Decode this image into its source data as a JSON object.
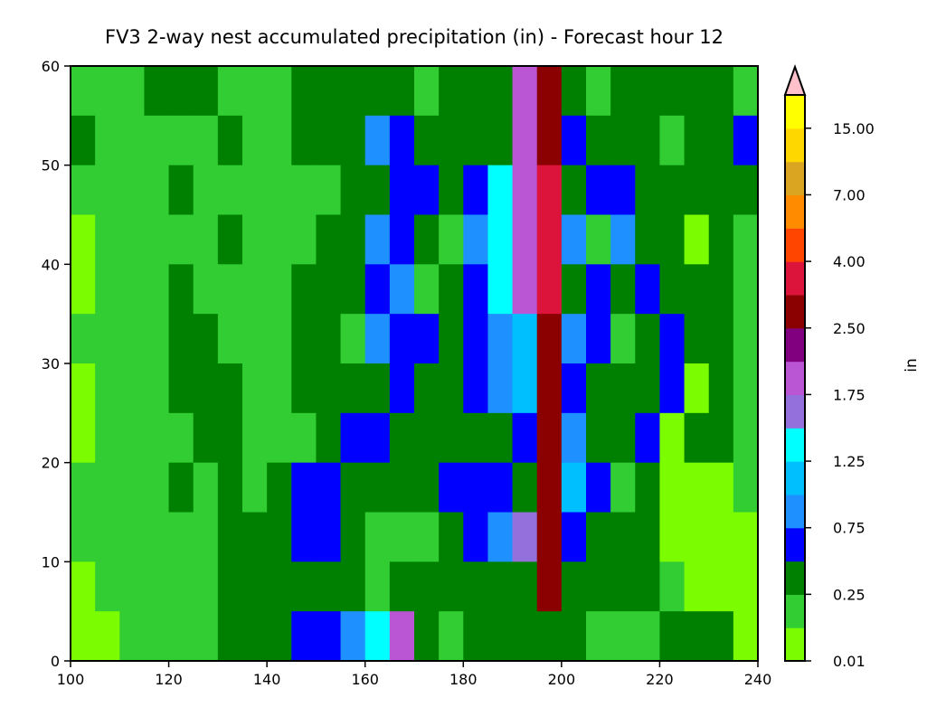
{
  "chart_data": {
    "type": "heatmap",
    "title": "FV3 2-way nest accumulated precipitation (in) - Forecast hour 12",
    "xlabel": "",
    "ylabel": "",
    "xlim": [
      100,
      240
    ],
    "ylim": [
      0,
      60
    ],
    "xticks": [
      "100",
      "120",
      "140",
      "160",
      "180",
      "200",
      "220",
      "240"
    ],
    "yticks": [
      "0",
      "10",
      "20",
      "30",
      "40",
      "50",
      "60"
    ],
    "grid": false,
    "colorbar": {
      "label": "in",
      "levels": [
        0.01,
        0.1,
        0.25,
        0.5,
        0.75,
        1.0,
        1.25,
        1.5,
        1.75,
        2.0,
        2.5,
        3.0,
        4.0,
        5.0,
        7.0,
        10.0,
        15.0,
        20.0
      ],
      "tick_labels": [
        "0.01",
        "0.25",
        "0.75",
        "1.25",
        "1.75",
        "2.50",
        "4.00",
        "7.00",
        "15.00"
      ],
      "colors": [
        "#7cfc00",
        "#32cd32",
        "#008000",
        "#0000ff",
        "#1e90ff",
        "#00bfff",
        "#00ffff",
        "#9370db",
        "#ba55d3",
        "#800080",
        "#8b0000",
        "#dc143c",
        "#ff4500",
        "#ff8c00",
        "#daa520",
        "#ffd700",
        "#ffff00"
      ],
      "extend_color": "#ffc0cb",
      "extend": "max"
    },
    "grid_data": {
      "x_start": 100,
      "x_end": 240,
      "y_start": 0,
      "y_end": 60,
      "cols": 28,
      "rows": 12,
      "row_order": "top-to-bottom",
      "classes": [
        "1112221112222212228A21222221",
        "2111112112224322228A32221223",
        "1111211111122332368B23322222",
        "0111112111224321468B41422021",
        "0111211112223412368B23232221",
        "1111221112214332345A43123221",
        "0111222112222322345A32223021",
        "0111122111233222223A42230221",
        "1111212123322223332A53120001",
        "1111112223321112347A32220000",
        "0111112222221222222A22221000",
        "0011112223346821222221112220"
      ]
    }
  }
}
